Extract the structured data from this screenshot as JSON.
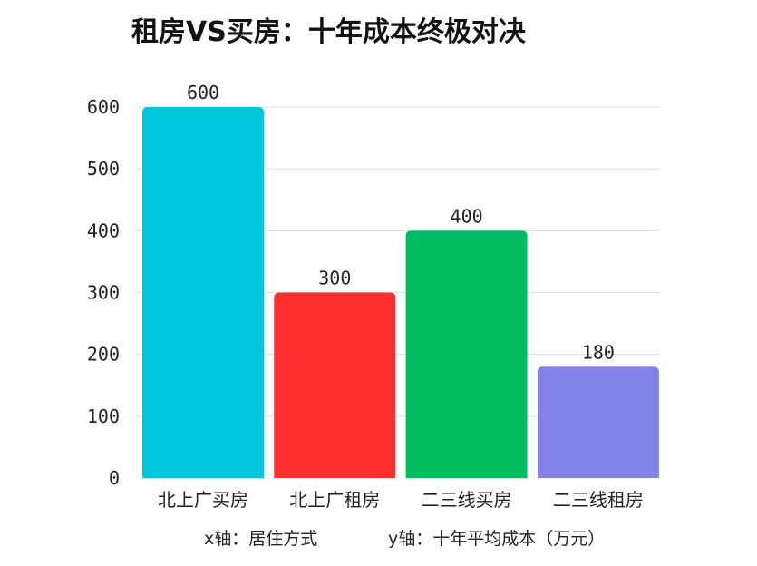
{
  "chart_data": {
    "type": "bar",
    "title": "租房VS买房：十年成本终极对决",
    "categories": [
      "北上广买房",
      "北上广租房",
      "二三线买房",
      "二三线租房"
    ],
    "values": [
      600,
      300,
      400,
      180
    ],
    "colors": [
      "#00C8DC",
      "#FF2E2E",
      "#00BD62",
      "#8183E8"
    ],
    "xlabel": "x轴：居住方式",
    "ylabel": "y轴：十年平均成本（万元）",
    "ylim": [
      0,
      600
    ],
    "yticks": [
      "0",
      "100",
      "200",
      "300",
      "400",
      "500",
      "600"
    ],
    "grid": true
  }
}
